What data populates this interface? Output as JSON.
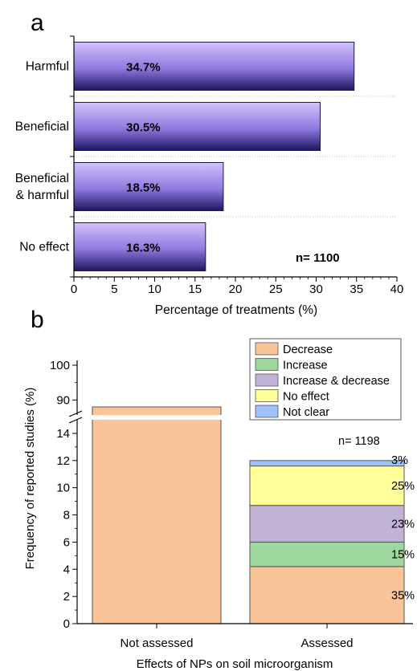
{
  "chart_data": [
    {
      "panel_label": "a",
      "type": "bar",
      "orientation": "horizontal",
      "categories": [
        "Harmful",
        "Beneficial",
        "Beneficial\n& harmful",
        "No effect"
      ],
      "values": [
        34.7,
        30.5,
        18.5,
        16.3
      ],
      "value_labels": [
        "34.7%",
        "30.5%",
        "18.5%",
        "16.3%"
      ],
      "xlabel": "Percentage of treatments (%)",
      "xlim": [
        0,
        40
      ],
      "xticks": [
        0,
        5,
        10,
        15,
        20,
        25,
        30,
        35,
        40
      ],
      "annotation": "n= 1100",
      "colors": {
        "bar_light": "#c9b6f5",
        "bar_dark": "#1c1660"
      },
      "grid": "dotted separators between categories"
    },
    {
      "panel_label": "b",
      "type": "bar",
      "stacked": true,
      "categories": [
        "Not assessed",
        "Assessed"
      ],
      "xlabel": "Effects of NPs on soil microorganism",
      "ylabel": "Frequency of reported studies (%)",
      "y_axis_break": [
        15,
        85
      ],
      "yticks_lower": [
        0,
        2,
        4,
        6,
        8,
        10,
        12,
        14
      ],
      "yticks_upper": [
        90,
        100
      ],
      "ylim": [
        0,
        100
      ],
      "not_assessed_value": 88,
      "series": [
        {
          "name": "Decrease",
          "color": "#f9c598",
          "values": [
            88,
            4.2
          ]
        },
        {
          "name": "Increase",
          "color": "#9ed79e",
          "values": [
            0,
            1.8
          ]
        },
        {
          "name": "Increase & decrease",
          "color": "#c1b3d8",
          "values": [
            0,
            2.7
          ]
        },
        {
          "name": "No effect",
          "color": "#ffff99",
          "values": [
            0,
            2.9
          ]
        },
        {
          "name": "Not clear",
          "color": "#9ec1f7",
          "values": [
            0,
            0.4
          ]
        }
      ],
      "segment_labels": [
        "35%",
        "15%",
        "23%",
        "25%",
        "3%"
      ],
      "annotation": "n= 1198",
      "legend": "top-right"
    }
  ]
}
